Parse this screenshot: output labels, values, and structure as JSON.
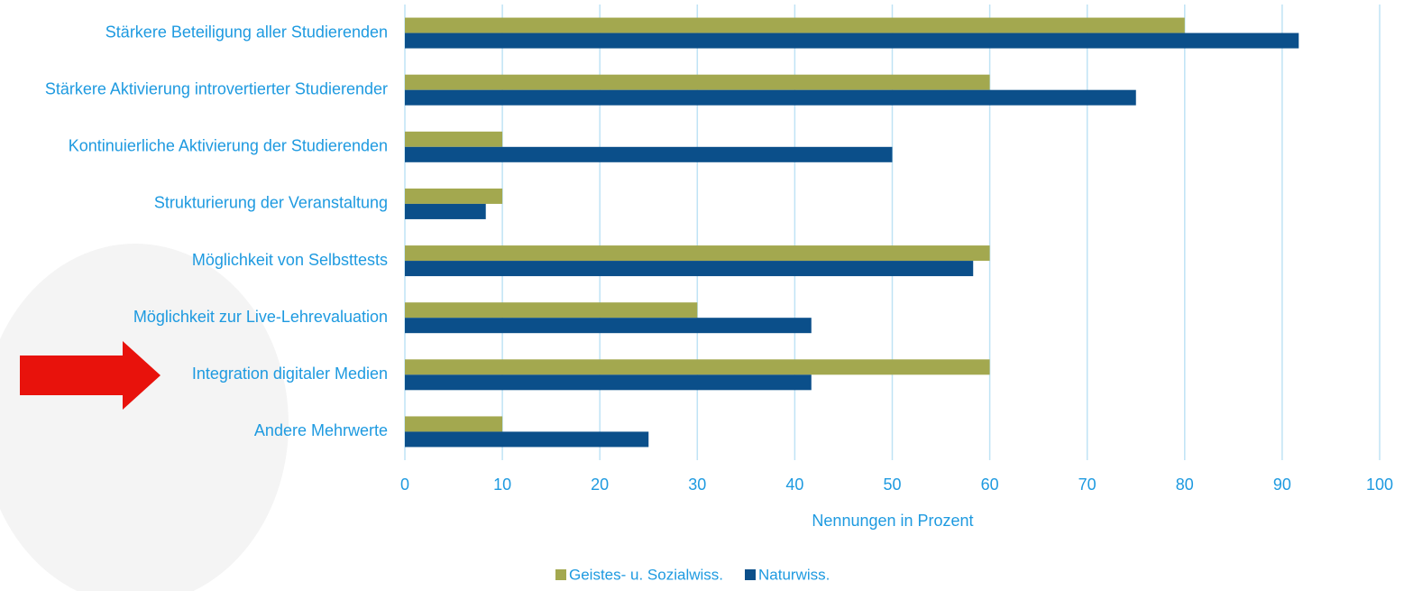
{
  "chart_data": {
    "type": "hbar",
    "categories": [
      "Stärkere Beteiligung aller Studierenden",
      "Stärkere Aktivierung introvertierter Studierender",
      "Kontinuierliche Aktivierung der Studierenden",
      "Strukturierung der Veranstaltung",
      "Möglichkeit von Selbsttests",
      "Möglichkeit zur Live-Lehrevaluation",
      "Integration digitaler Medien",
      "Andere Mehrwerte"
    ],
    "series": [
      {
        "name": "Geistes- u. Sozialwiss.",
        "color": "#a3a84f",
        "values": [
          80,
          60,
          10,
          10,
          60,
          30,
          60,
          10
        ]
      },
      {
        "name": "Naturwiss.",
        "color": "#0b4f8a",
        "values": [
          91.7,
          75,
          50,
          8.3,
          58.3,
          41.7,
          41.7,
          25
        ]
      }
    ],
    "xlabel": "Nennungen in Prozent",
    "xlim": [
      0,
      100
    ],
    "xticks": [
      0,
      10,
      20,
      30,
      40,
      50,
      60,
      70,
      80,
      90,
      100
    ],
    "grid": true,
    "legend": "bottom"
  }
}
